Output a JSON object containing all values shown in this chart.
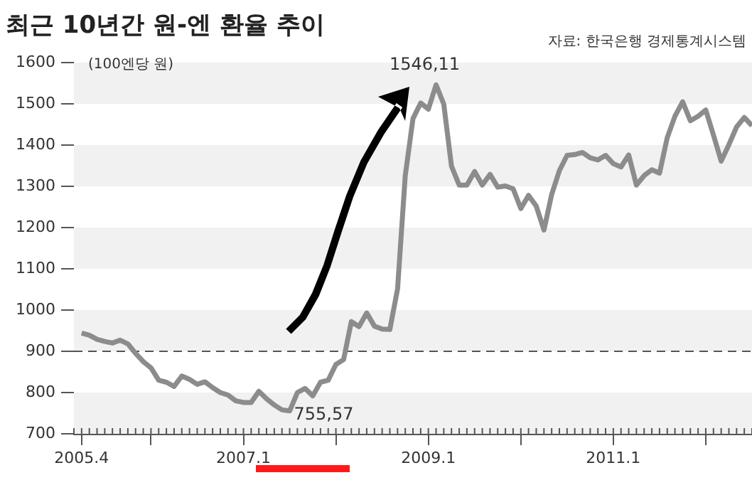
{
  "chart_data": {
    "type": "line",
    "title": "최근 10년간 원-엔 환율 추이",
    "ylabel": "(100엔당 원)",
    "annotations": [
      "자료: 한국은행 경제통계시스템",
      {
        "text": "755,57",
        "x": "2007-07",
        "y": 755.57
      },
      {
        "text": "1546,11",
        "x": "2009-02",
        "y": 1546.11
      }
    ],
    "x": [
      "2005-04",
      "2005-05",
      "2005-06",
      "2005-07",
      "2005-08",
      "2005-09",
      "2005-10",
      "2005-11",
      "2005-12",
      "2006-01",
      "2006-02",
      "2006-03",
      "2006-04",
      "2006-05",
      "2006-06",
      "2006-07",
      "2006-08",
      "2006-09",
      "2006-10",
      "2006-11",
      "2006-12",
      "2007-01",
      "2007-02",
      "2007-03",
      "2007-04",
      "2007-05",
      "2007-06",
      "2007-07",
      "2007-08",
      "2007-09",
      "2007-10",
      "2007-11",
      "2007-12",
      "2008-01",
      "2008-02",
      "2008-03",
      "2008-04",
      "2008-05",
      "2008-06",
      "2008-07",
      "2008-08",
      "2008-09",
      "2008-10",
      "2008-11",
      "2008-12",
      "2009-01",
      "2009-02",
      "2009-03",
      "2009-04",
      "2009-05",
      "2009-06",
      "2009-07",
      "2009-08",
      "2009-09",
      "2009-10",
      "2009-11",
      "2009-12",
      "2010-01",
      "2010-02",
      "2010-03",
      "2010-04",
      "2010-05",
      "2010-06",
      "2010-07",
      "2010-08",
      "2010-09",
      "2010-10",
      "2010-11",
      "2010-12",
      "2011-01",
      "2011-02",
      "2011-03",
      "2011-04",
      "2011-05",
      "2011-06",
      "2011-07",
      "2011-08",
      "2011-09",
      "2011-10",
      "2011-11",
      "2011-12",
      "2012-01",
      "2012-02",
      "2012-03",
      "2012-04",
      "2012-05",
      "2012-06",
      "2012-07"
    ],
    "series": [
      {
        "color": "#8c8c8c",
        "values": [
          944,
          939,
          929,
          924,
          920,
          927,
          918,
          895,
          875,
          860,
          830,
          825,
          815,
          840,
          832,
          820,
          826,
          812,
          800,
          794,
          780,
          776,
          776,
          803,
          785,
          770,
          758,
          755.57,
          800,
          810,
          792,
          825,
          830,
          868,
          880,
          972,
          960,
          993,
          961,
          954,
          953,
          1051,
          1326,
          1464,
          1502,
          1487,
          1546.11,
          1499,
          1349,
          1303,
          1303,
          1336,
          1303,
          1329,
          1298,
          1301,
          1294,
          1246,
          1278,
          1252,
          1194,
          1280,
          1338,
          1375,
          1377,
          1382,
          1369,
          1364,
          1375,
          1355,
          1347,
          1376,
          1303,
          1326,
          1340,
          1332,
          1418,
          1470,
          1505,
          1459,
          1470,
          1485,
          1424,
          1361,
          1401,
          1444,
          1467,
          1447
        ]
      }
    ],
    "xlim": [
      "2005-03",
      "2012-07"
    ],
    "xticks": [
      {
        "value": "2005-04",
        "label": "2005.4"
      },
      {
        "value": "2006-01",
        "label": null
      },
      {
        "value": "2007-01",
        "label": "2007.1"
      },
      {
        "value": "2008-01",
        "label": null
      },
      {
        "value": "2009-01",
        "label": "2009.1"
      },
      {
        "value": "2010-01",
        "label": null
      },
      {
        "value": "2011-01",
        "label": "2011.1"
      },
      {
        "value": "2012-01",
        "label": null
      }
    ],
    "ylim": [
      700,
      1600
    ],
    "yticks": [
      700,
      800,
      900,
      1000,
      1100,
      1200,
      1300,
      1400,
      1500,
      1600
    ],
    "legend": false,
    "marker": "none",
    "line_style": "solid",
    "bands": [
      {
        "axis": "y",
        "from": 700,
        "to": 800,
        "color": "#f1f1f1"
      },
      {
        "axis": "y",
        "from": 900,
        "to": 1000,
        "color": "#f1f1f1"
      },
      {
        "axis": "y",
        "from": 1100,
        "to": 1200,
        "color": "#f1f1f1"
      },
      {
        "axis": "y",
        "from": 1300,
        "to": 1400,
        "color": "#f1f1f1"
      },
      {
        "axis": "y",
        "from": 1500,
        "to": 1600,
        "color": "#f1f1f1"
      }
    ],
    "ref_lines": [
      {
        "axis": "y",
        "value": 900,
        "color": "#555555",
        "line_style": "dashed"
      }
    ]
  }
}
